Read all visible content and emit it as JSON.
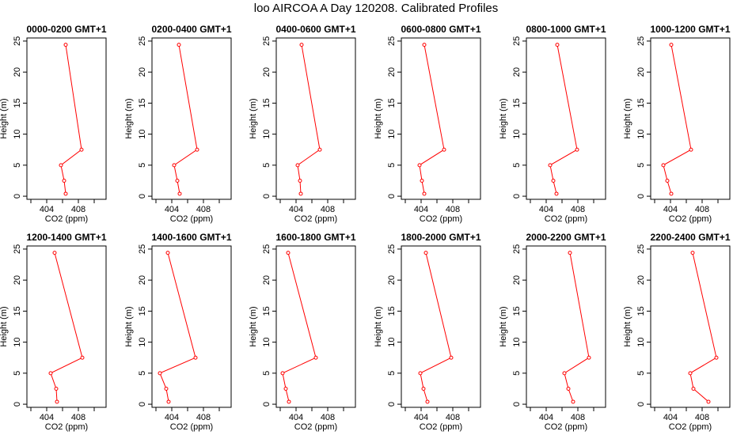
{
  "figure": {
    "title": "loo AIRCOA A  Day 120208. Calibrated Profiles"
  },
  "chart_data": [
    {
      "type": "line",
      "title": "0000-0200 GMT+1",
      "xlabel": "CO2 (ppm)",
      "ylabel": "Height (m)",
      "xlim": [
        401.5,
        411.5
      ],
      "ylim": [
        -0.5,
        25.5
      ],
      "xticks": [
        404,
        408
      ],
      "yticks": [
        0,
        5,
        10,
        15,
        20,
        25
      ],
      "series": [
        {
          "color": "#ff0000",
          "points": [
            {
              "x": 406.4,
              "y": 24.4
            },
            {
              "x": 408.4,
              "y": 7.5
            },
            {
              "x": 405.8,
              "y": 5.0
            },
            {
              "x": 406.2,
              "y": 2.5
            },
            {
              "x": 406.4,
              "y": 0.4
            }
          ]
        }
      ]
    },
    {
      "type": "line",
      "title": "0200-0400 GMT+1",
      "xlabel": "CO2 (ppm)",
      "ylabel": "Height (m)",
      "xlim": [
        401.5,
        411.5
      ],
      "ylim": [
        -0.5,
        25.5
      ],
      "xticks": [
        404,
        408
      ],
      "yticks": [
        0,
        5,
        10,
        15,
        20,
        25
      ],
      "series": [
        {
          "color": "#ff0000",
          "points": [
            {
              "x": 404.9,
              "y": 24.4
            },
            {
              "x": 407.2,
              "y": 7.5
            },
            {
              "x": 404.3,
              "y": 5.0
            },
            {
              "x": 404.7,
              "y": 2.5
            },
            {
              "x": 405.0,
              "y": 0.4
            }
          ]
        }
      ]
    },
    {
      "type": "line",
      "title": "0400-0600 GMT+1",
      "xlabel": "CO2 (ppm)",
      "ylabel": "Height (m)",
      "xlim": [
        401.5,
        411.5
      ],
      "ylim": [
        -0.5,
        25.5
      ],
      "xticks": [
        404,
        408
      ],
      "yticks": [
        0,
        5,
        10,
        15,
        20,
        25
      ],
      "series": [
        {
          "color": "#ff0000",
          "points": [
            {
              "x": 404.7,
              "y": 24.4
            },
            {
              "x": 407.0,
              "y": 7.5
            },
            {
              "x": 404.2,
              "y": 5.0
            },
            {
              "x": 404.5,
              "y": 2.5
            },
            {
              "x": 404.6,
              "y": 0.4
            }
          ]
        }
      ]
    },
    {
      "type": "line",
      "title": "0600-0800 GMT+1",
      "xlabel": "CO2 (ppm)",
      "ylabel": "Height (m)",
      "xlim": [
        401.5,
        411.5
      ],
      "ylim": [
        -0.5,
        25.5
      ],
      "xticks": [
        404,
        408
      ],
      "yticks": [
        0,
        5,
        10,
        15,
        20,
        25
      ],
      "series": [
        {
          "color": "#ff0000",
          "points": [
            {
              "x": 404.4,
              "y": 24.4
            },
            {
              "x": 406.9,
              "y": 7.5
            },
            {
              "x": 403.8,
              "y": 5.0
            },
            {
              "x": 404.1,
              "y": 2.5
            },
            {
              "x": 404.4,
              "y": 0.4
            }
          ]
        }
      ]
    },
    {
      "type": "line",
      "title": "0800-1000 GMT+1",
      "xlabel": "CO2 (ppm)",
      "ylabel": "Height (m)",
      "xlim": [
        401.5,
        411.5
      ],
      "ylim": [
        -0.5,
        25.5
      ],
      "xticks": [
        404,
        408
      ],
      "yticks": [
        0,
        5,
        10,
        15,
        20,
        25
      ],
      "series": [
        {
          "color": "#ff0000",
          "points": [
            {
              "x": 405.4,
              "y": 24.4
            },
            {
              "x": 407.9,
              "y": 7.5
            },
            {
              "x": 404.5,
              "y": 5.0
            },
            {
              "x": 404.9,
              "y": 2.5
            },
            {
              "x": 405.3,
              "y": 0.4
            }
          ]
        }
      ]
    },
    {
      "type": "line",
      "title": "1000-1200 GMT+1",
      "xlabel": "CO2 (ppm)",
      "ylabel": "Height (m)",
      "xlim": [
        401.5,
        411.5
      ],
      "ylim": [
        -0.5,
        25.5
      ],
      "xticks": [
        404,
        408
      ],
      "yticks": [
        0,
        5,
        10,
        15,
        20,
        25
      ],
      "series": [
        {
          "color": "#ff0000",
          "points": [
            {
              "x": 404.1,
              "y": 24.4
            },
            {
              "x": 406.6,
              "y": 7.5
            },
            {
              "x": 403.1,
              "y": 5.0
            },
            {
              "x": 403.6,
              "y": 2.5
            },
            {
              "x": 404.1,
              "y": 0.4
            }
          ]
        }
      ]
    },
    {
      "type": "line",
      "title": "1200-1400 GMT+1",
      "xlabel": "CO2 (ppm)",
      "ylabel": "Height (m)",
      "xlim": [
        401.5,
        411.5
      ],
      "ylim": [
        -0.5,
        25.5
      ],
      "xticks": [
        404,
        408
      ],
      "yticks": [
        0,
        5,
        10,
        15,
        20,
        25
      ],
      "series": [
        {
          "color": "#ff0000",
          "points": [
            {
              "x": 405.0,
              "y": 24.4
            },
            {
              "x": 408.5,
              "y": 7.5
            },
            {
              "x": 404.5,
              "y": 5.0
            },
            {
              "x": 405.2,
              "y": 2.5
            },
            {
              "x": 405.3,
              "y": 0.4
            }
          ]
        }
      ]
    },
    {
      "type": "line",
      "title": "1400-1600 GMT+1",
      "xlabel": "CO2 (ppm)",
      "ylabel": "Height (m)",
      "xlim": [
        401.5,
        411.5
      ],
      "ylim": [
        -0.5,
        25.5
      ],
      "xticks": [
        404,
        408
      ],
      "yticks": [
        0,
        5,
        10,
        15,
        20,
        25
      ],
      "series": [
        {
          "color": "#ff0000",
          "points": [
            {
              "x": 403.5,
              "y": 24.4
            },
            {
              "x": 407.0,
              "y": 7.5
            },
            {
              "x": 402.5,
              "y": 5.0
            },
            {
              "x": 403.3,
              "y": 2.5
            },
            {
              "x": 403.6,
              "y": 0.4
            }
          ]
        }
      ]
    },
    {
      "type": "line",
      "title": "1600-1800 GMT+1",
      "xlabel": "CO2 (ppm)",
      "ylabel": "Height (m)",
      "xlim": [
        401.5,
        411.5
      ],
      "ylim": [
        -0.5,
        25.5
      ],
      "xticks": [
        404,
        408
      ],
      "yticks": [
        0,
        5,
        10,
        15,
        20,
        25
      ],
      "series": [
        {
          "color": "#ff0000",
          "points": [
            {
              "x": 403.0,
              "y": 24.4
            },
            {
              "x": 406.5,
              "y": 7.5
            },
            {
              "x": 402.3,
              "y": 5.0
            },
            {
              "x": 402.7,
              "y": 2.5
            },
            {
              "x": 403.1,
              "y": 0.4
            }
          ]
        }
      ]
    },
    {
      "type": "line",
      "title": "1800-2000 GMT+1",
      "xlabel": "CO2 (ppm)",
      "ylabel": "Height (m)",
      "xlim": [
        401.5,
        411.5
      ],
      "ylim": [
        -0.5,
        25.5
      ],
      "xticks": [
        404,
        408
      ],
      "yticks": [
        0,
        5,
        10,
        15,
        20,
        25
      ],
      "series": [
        {
          "color": "#ff0000",
          "points": [
            {
              "x": 404.6,
              "y": 24.4
            },
            {
              "x": 407.8,
              "y": 7.5
            },
            {
              "x": 403.9,
              "y": 5.0
            },
            {
              "x": 404.3,
              "y": 2.5
            },
            {
              "x": 404.8,
              "y": 0.4
            }
          ]
        }
      ]
    },
    {
      "type": "line",
      "title": "2000-2200 GMT+1",
      "xlabel": "CO2 (ppm)",
      "ylabel": "Height (m)",
      "xlim": [
        401.5,
        411.5
      ],
      "ylim": [
        -0.5,
        25.5
      ],
      "xticks": [
        404,
        408
      ],
      "yticks": [
        0,
        5,
        10,
        15,
        20,
        25
      ],
      "series": [
        {
          "color": "#ff0000",
          "points": [
            {
              "x": 407.0,
              "y": 24.4
            },
            {
              "x": 409.4,
              "y": 7.5
            },
            {
              "x": 406.3,
              "y": 5.0
            },
            {
              "x": 406.8,
              "y": 2.5
            },
            {
              "x": 407.4,
              "y": 0.4
            }
          ]
        }
      ]
    },
    {
      "type": "line",
      "title": "2200-2400 GMT+1",
      "xlabel": "CO2 (ppm)",
      "ylabel": "Height (m)",
      "xlim": [
        401.5,
        411.5
      ],
      "ylim": [
        -0.5,
        25.5
      ],
      "xticks": [
        404,
        408
      ],
      "yticks": [
        0,
        5,
        10,
        15,
        20,
        25
      ],
      "series": [
        {
          "color": "#ff0000",
          "points": [
            {
              "x": 406.8,
              "y": 24.4
            },
            {
              "x": 409.8,
              "y": 7.5
            },
            {
              "x": 406.5,
              "y": 5.0
            },
            {
              "x": 406.9,
              "y": 2.5
            },
            {
              "x": 408.8,
              "y": 0.4
            }
          ]
        }
      ]
    }
  ]
}
